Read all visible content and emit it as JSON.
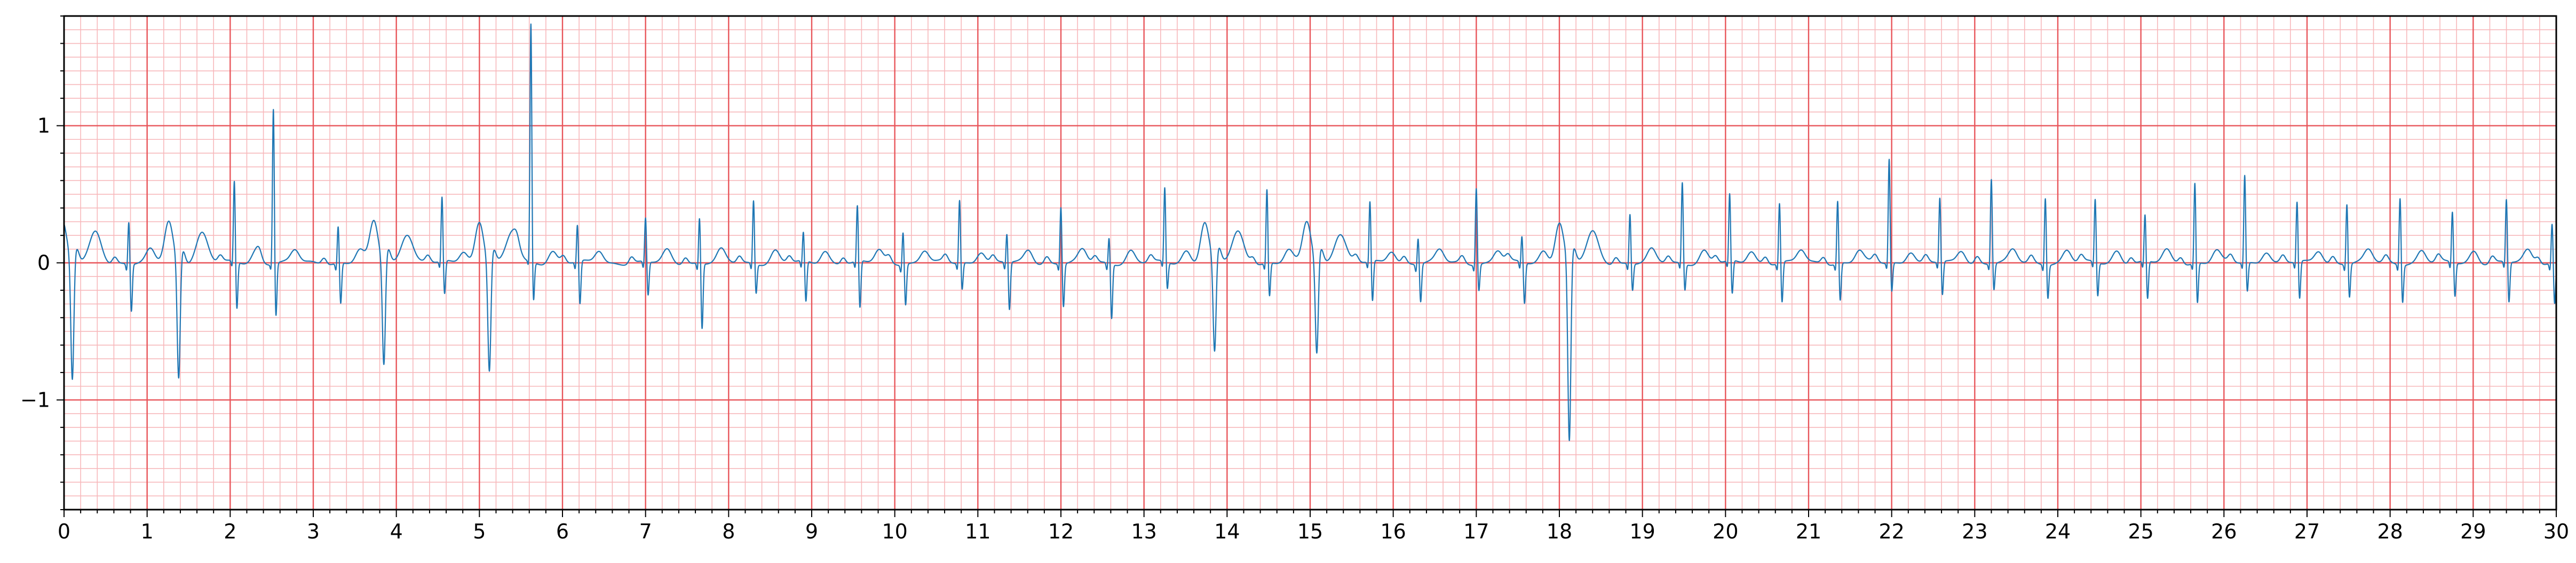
{
  "chart_data": {
    "type": "line",
    "title": "",
    "xlabel": "",
    "ylabel": "",
    "xlim": [
      0,
      30
    ],
    "ylim": [
      -1.8,
      1.8
    ],
    "x_ticks": [
      0,
      1,
      2,
      3,
      4,
      5,
      6,
      7,
      8,
      9,
      10,
      11,
      12,
      13,
      14,
      15,
      16,
      17,
      18,
      19,
      20,
      21,
      22,
      23,
      24,
      25,
      26,
      27,
      28,
      29,
      30
    ],
    "y_ticks": [
      -1,
      0,
      1
    ],
    "y_tick_labels": [
      "−1",
      "0",
      "1"
    ],
    "grid": "on",
    "grid_major_color": "#e8555a",
    "grid_minor_color": "#f7b8bb",
    "line_color": "#1f77b4",
    "series": [
      {
        "beats": [
          {
            "t": 0.1,
            "kind": "v",
            "r": 0.0,
            "s": -0.9
          },
          {
            "t": 0.78,
            "kind": "n",
            "r": 0.32,
            "s": -0.35
          },
          {
            "t": 1.38,
            "kind": "v",
            "r": 0.05,
            "s": -0.88
          },
          {
            "t": 2.05,
            "kind": "n",
            "r": 0.6,
            "s": -0.35
          },
          {
            "t": 2.52,
            "kind": "n",
            "r": 1.15,
            "s": -0.4
          },
          {
            "t": 3.3,
            "kind": "n",
            "r": 0.28,
            "s": -0.3
          },
          {
            "t": 3.85,
            "kind": "v",
            "r": 0.0,
            "s": -0.78
          },
          {
            "t": 4.55,
            "kind": "n",
            "r": 0.48,
            "s": -0.25
          },
          {
            "t": 5.12,
            "kind": "v",
            "r": 0.05,
            "s": -0.82
          },
          {
            "t": 5.62,
            "kind": "n",
            "r": 1.75,
            "s": -0.3
          },
          {
            "t": 6.18,
            "kind": "n",
            "r": 0.28,
            "s": -0.32
          },
          {
            "t": 7.0,
            "kind": "n",
            "r": 0.33,
            "s": -0.25
          },
          {
            "t": 7.65,
            "kind": "n",
            "r": 0.35,
            "s": -0.48
          },
          {
            "t": 8.3,
            "kind": "n",
            "r": 0.47,
            "s": -0.22
          },
          {
            "t": 8.9,
            "kind": "n",
            "r": 0.22,
            "s": -0.3
          },
          {
            "t": 9.55,
            "kind": "n",
            "r": 0.42,
            "s": -0.35
          },
          {
            "t": 10.1,
            "kind": "n",
            "r": 0.25,
            "s": -0.3
          },
          {
            "t": 10.78,
            "kind": "n",
            "r": 0.47,
            "s": -0.2
          },
          {
            "t": 11.35,
            "kind": "n",
            "r": 0.22,
            "s": -0.35
          },
          {
            "t": 12.0,
            "kind": "n",
            "r": 0.43,
            "s": -0.32
          },
          {
            "t": 12.58,
            "kind": "n",
            "r": 0.2,
            "s": -0.4
          },
          {
            "t": 13.25,
            "kind": "n",
            "r": 0.55,
            "s": -0.2
          },
          {
            "t": 13.85,
            "kind": "v",
            "r": 0.05,
            "s": -0.7
          },
          {
            "t": 14.48,
            "kind": "n",
            "r": 0.55,
            "s": -0.25
          },
          {
            "t": 15.08,
            "kind": "v",
            "r": 0.05,
            "s": -0.7
          },
          {
            "t": 15.72,
            "kind": "n",
            "r": 0.45,
            "s": -0.3
          },
          {
            "t": 16.3,
            "kind": "n",
            "r": 0.2,
            "s": -0.28
          },
          {
            "t": 17.0,
            "kind": "n",
            "r": 0.57,
            "s": -0.2
          },
          {
            "t": 17.55,
            "kind": "n",
            "r": 0.2,
            "s": -0.3
          },
          {
            "t": 18.12,
            "kind": "v",
            "r": 0.1,
            "s": -1.35
          },
          {
            "t": 18.85,
            "kind": "n",
            "r": 0.37,
            "s": -0.2
          },
          {
            "t": 19.48,
            "kind": "n",
            "r": 0.6,
            "s": -0.2
          },
          {
            "t": 20.05,
            "kind": "n",
            "r": 0.5,
            "s": -0.25
          },
          {
            "t": 20.65,
            "kind": "n",
            "r": 0.45,
            "s": -0.3
          },
          {
            "t": 21.35,
            "kind": "n",
            "r": 0.47,
            "s": -0.28
          },
          {
            "t": 21.97,
            "kind": "n",
            "r": 0.77,
            "s": -0.22
          },
          {
            "t": 22.58,
            "kind": "n",
            "r": 0.48,
            "s": -0.25
          },
          {
            "t": 23.2,
            "kind": "n",
            "r": 0.63,
            "s": -0.2
          },
          {
            "t": 23.85,
            "kind": "n",
            "r": 0.5,
            "s": -0.25
          },
          {
            "t": 24.45,
            "kind": "n",
            "r": 0.47,
            "s": -0.25
          },
          {
            "t": 25.05,
            "kind": "n",
            "r": 0.35,
            "s": -0.28
          },
          {
            "t": 25.65,
            "kind": "n",
            "r": 0.6,
            "s": -0.3
          },
          {
            "t": 26.25,
            "kind": "n",
            "r": 0.65,
            "s": -0.22
          },
          {
            "t": 26.88,
            "kind": "n",
            "r": 0.45,
            "s": -0.28
          },
          {
            "t": 27.48,
            "kind": "n",
            "r": 0.45,
            "s": -0.25
          },
          {
            "t": 28.12,
            "kind": "n",
            "r": 0.5,
            "s": -0.28
          },
          {
            "t": 28.75,
            "kind": "n",
            "r": 0.38,
            "s": -0.25
          },
          {
            "t": 29.4,
            "kind": "n",
            "r": 0.47,
            "s": -0.3
          },
          {
            "t": 29.95,
            "kind": "n",
            "r": 0.3,
            "s": -0.3
          }
        ]
      }
    ]
  }
}
